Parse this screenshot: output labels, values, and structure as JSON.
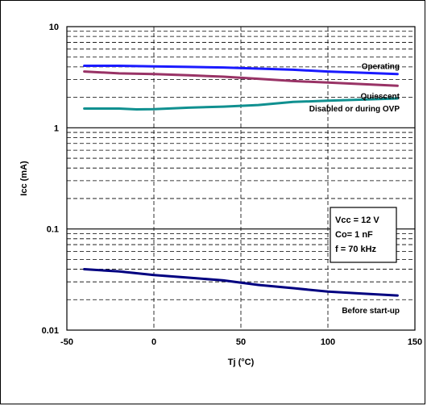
{
  "chart_data": {
    "type": "line",
    "title": "",
    "xlabel": "Tj (°C)",
    "ylabel": "Icc (mA)",
    "x_scale": "linear",
    "y_scale": "log",
    "xlim": [
      -50,
      150
    ],
    "ylim": [
      0.01,
      10
    ],
    "x_ticks": [
      -50,
      0,
      50,
      100,
      150
    ],
    "x_tick_labels": [
      "-50",
      "0",
      "50",
      "100",
      "150"
    ],
    "y_ticks": [
      0.01,
      0.1,
      1,
      10
    ],
    "y_tick_labels": [
      "0.01",
      "0.1",
      "1",
      "10"
    ],
    "grid": "dashed",
    "series": [
      {
        "name": "Operating",
        "color": "#1a1aff",
        "x": [
          -40,
          -20,
          0,
          20,
          40,
          60,
          80,
          100,
          120,
          140
        ],
        "y": [
          4.1,
          4.1,
          4.05,
          4.0,
          3.95,
          3.85,
          3.75,
          3.6,
          3.5,
          3.4
        ]
      },
      {
        "name": "Quiescent",
        "color": "#993366",
        "x": [
          -40,
          -20,
          0,
          20,
          40,
          60,
          80,
          100,
          120,
          140
        ],
        "y": [
          3.6,
          3.45,
          3.4,
          3.3,
          3.2,
          3.05,
          2.9,
          2.8,
          2.7,
          2.6
        ]
      },
      {
        "name": "Disabled or during OVP",
        "color": "#109090",
        "x": [
          -40,
          -20,
          -10,
          0,
          20,
          40,
          60,
          80,
          100,
          120,
          140
        ],
        "y": [
          1.55,
          1.55,
          1.52,
          1.53,
          1.58,
          1.62,
          1.68,
          1.8,
          1.85,
          1.9,
          1.95
        ]
      },
      {
        "name": "Before start-up",
        "color": "#000080",
        "x": [
          -40,
          -20,
          0,
          20,
          40,
          60,
          80,
          100,
          120,
          140
        ],
        "y": [
          0.04,
          0.038,
          0.035,
          0.033,
          0.031,
          0.028,
          0.026,
          0.024,
          0.023,
          0.022
        ]
      }
    ],
    "annotation_box": [
      "Vcc = 12 V",
      "Co= 1 nF",
      "f = 70 kHz"
    ]
  }
}
